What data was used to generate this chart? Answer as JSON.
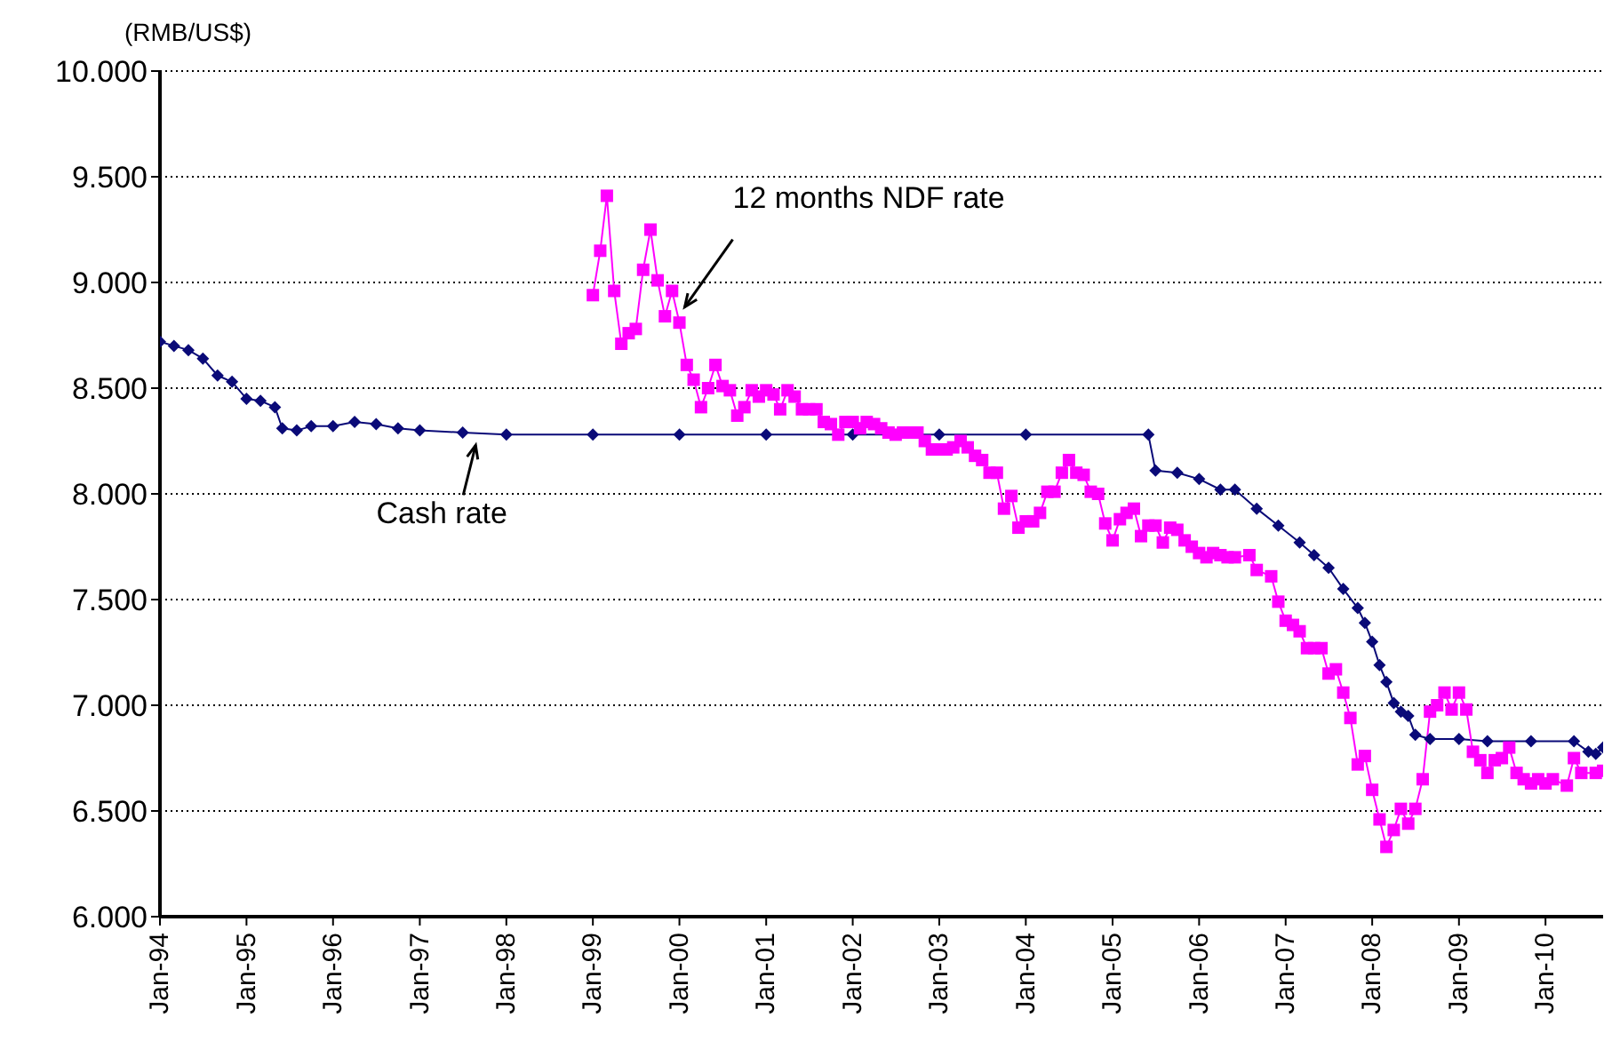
{
  "chart_data": {
    "type": "line",
    "ylabel": "(RMB/US$)",
    "xlim": [
      "1994-01",
      "2010-09"
    ],
    "xticks": [
      {
        "value": "1994-01",
        "label": "Jan-94"
      },
      {
        "value": "1995-01",
        "label": "Jan-95"
      },
      {
        "value": "1996-01",
        "label": "Jan-96"
      },
      {
        "value": "1997-01",
        "label": "Jan-97"
      },
      {
        "value": "1998-01",
        "label": "Jan-98"
      },
      {
        "value": "1999-01",
        "label": "Jan-99"
      },
      {
        "value": "2000-01",
        "label": "Jan-00"
      },
      {
        "value": "2001-01",
        "label": "Jan-01"
      },
      {
        "value": "2002-01",
        "label": "Jan-02"
      },
      {
        "value": "2003-01",
        "label": "Jan-03"
      },
      {
        "value": "2004-01",
        "label": "Jan-04"
      },
      {
        "value": "2005-01",
        "label": "Jan-05"
      },
      {
        "value": "2006-01",
        "label": "Jan-06"
      },
      {
        "value": "2007-01",
        "label": "Jan-07"
      },
      {
        "value": "2008-01",
        "label": "Jan-08"
      },
      {
        "value": "2009-01",
        "label": "Jan-09"
      },
      {
        "value": "2010-01",
        "label": "Jan-10"
      }
    ],
    "ylim": [
      6,
      10
    ],
    "yticks": [
      {
        "value": 6,
        "label": "6.000"
      },
      {
        "value": 6.5,
        "label": "6.500"
      },
      {
        "value": 7,
        "label": "7.000"
      },
      {
        "value": 7.5,
        "label": "7.500"
      },
      {
        "value": 8,
        "label": "8.000"
      },
      {
        "value": 8.5,
        "label": "8.500"
      },
      {
        "value": 9,
        "label": "9.000"
      },
      {
        "value": 9.5,
        "label": "9.500"
      },
      {
        "value": 10,
        "label": "10.000"
      }
    ],
    "grid": "y",
    "legend": false,
    "annotations": [
      {
        "text": "12 months NDF rate",
        "x": "2000-01",
        "y": 8.85
      },
      {
        "text": "Cash rate",
        "x": "1997-09",
        "y": 8.28
      }
    ],
    "series": [
      {
        "color": "#0a0a78",
        "marker": "diamond",
        "line_style": "solid",
        "x": [
          "1994-01",
          "1994-03",
          "1994-05",
          "1994-07",
          "1994-09",
          "1994-11",
          "1995-01",
          "1995-03",
          "1995-05",
          "1995-06",
          "1995-08",
          "1995-10",
          "1996-01",
          "1996-04",
          "1996-07",
          "1996-10",
          "1997-01",
          "1997-07",
          "1998-01",
          "1999-01",
          "2000-01",
          "2001-01",
          "2002-01",
          "2003-01",
          "2004-01",
          "2005-06",
          "2005-07",
          "2005-10",
          "2006-01",
          "2006-04",
          "2006-06",
          "2006-09",
          "2006-12",
          "2007-03",
          "2007-05",
          "2007-07",
          "2007-09",
          "2007-11",
          "2007-12",
          "2008-01",
          "2008-02",
          "2008-03",
          "2008-04",
          "2008-05",
          "2008-06",
          "2008-07",
          "2008-09",
          "2009-01",
          "2009-05",
          "2009-11",
          "2010-05",
          "2010-07",
          "2010-08",
          "2010-09"
        ],
        "values": [
          8.72,
          8.7,
          8.68,
          8.64,
          8.56,
          8.53,
          8.45,
          8.44,
          8.41,
          8.31,
          8.3,
          8.32,
          8.32,
          8.34,
          8.33,
          8.31,
          8.3,
          8.29,
          8.28,
          8.28,
          8.28,
          8.28,
          8.28,
          8.28,
          8.28,
          8.28,
          8.11,
          8.1,
          8.07,
          8.02,
          8.02,
          7.93,
          7.85,
          7.77,
          7.71,
          7.65,
          7.55,
          7.46,
          7.39,
          7.3,
          7.19,
          7.11,
          7.01,
          6.97,
          6.95,
          6.86,
          6.84,
          6.84,
          6.83,
          6.83,
          6.83,
          6.78,
          6.77,
          6.8
        ]
      },
      {
        "color": "#ff00ff",
        "marker": "square",
        "line_style": "solid",
        "x": [
          "1999-01",
          "1999-02",
          "1999-03",
          "1999-04",
          "1999-05",
          "1999-06",
          "1999-07",
          "1999-08",
          "1999-09",
          "1999-10",
          "1999-11",
          "1999-12",
          "2000-01",
          "2000-02",
          "2000-03",
          "2000-04",
          "2000-05",
          "2000-06",
          "2000-07",
          "2000-08",
          "2000-09",
          "2000-10",
          "2000-11",
          "2000-12",
          "2001-01",
          "2001-02",
          "2001-03",
          "2001-04",
          "2001-05",
          "2001-06",
          "2001-07",
          "2001-08",
          "2001-09",
          "2001-10",
          "2001-11",
          "2001-12",
          "2002-01",
          "2002-02",
          "2002-03",
          "2002-04",
          "2002-05",
          "2002-06",
          "2002-07",
          "2002-08",
          "2002-09",
          "2002-10",
          "2002-11",
          "2002-12",
          "2003-01",
          "2003-02",
          "2003-03",
          "2003-04",
          "2003-05",
          "2003-06",
          "2003-07",
          "2003-08",
          "2003-09",
          "2003-10",
          "2003-11",
          "2003-12",
          "2004-01",
          "2004-02",
          "2004-03",
          "2004-04",
          "2004-05",
          "2004-06",
          "2004-07",
          "2004-08",
          "2004-09",
          "2004-10",
          "2004-11",
          "2004-12",
          "2005-01",
          "2005-02",
          "2005-03",
          "2005-04",
          "2005-05",
          "2005-06",
          "2005-07",
          "2005-08",
          "2005-09",
          "2005-10",
          "2005-11",
          "2005-12",
          "2006-01",
          "2006-02",
          "2006-03",
          "2006-04",
          "2006-05",
          "2006-06",
          "2006-08",
          "2006-09",
          "2006-11",
          "2006-12",
          "2007-01",
          "2007-02",
          "2007-03",
          "2007-04",
          "2007-05",
          "2007-06",
          "2007-07",
          "2007-08",
          "2007-09",
          "2007-10",
          "2007-11",
          "2007-12",
          "2008-01",
          "2008-02",
          "2008-03",
          "2008-04",
          "2008-05",
          "2008-06",
          "2008-07",
          "2008-08",
          "2008-09",
          "2008-10",
          "2008-11",
          "2008-12",
          "2009-01",
          "2009-02",
          "2009-03",
          "2009-04",
          "2009-05",
          "2009-06",
          "2009-07",
          "2009-08",
          "2009-09",
          "2009-10",
          "2009-11",
          "2009-12",
          "2010-01",
          "2010-02",
          "2010-04",
          "2010-05",
          "2010-06",
          "2010-08",
          "2010-09"
        ],
        "values": [
          8.94,
          9.15,
          9.41,
          8.96,
          8.71,
          8.76,
          8.78,
          9.06,
          9.25,
          9.01,
          8.84,
          8.96,
          8.81,
          8.61,
          8.54,
          8.41,
          8.5,
          8.61,
          8.51,
          8.49,
          8.37,
          8.41,
          8.49,
          8.46,
          8.49,
          8.47,
          8.4,
          8.49,
          8.46,
          8.4,
          8.4,
          8.4,
          8.34,
          8.33,
          8.28,
          8.34,
          8.34,
          8.31,
          8.34,
          8.33,
          8.31,
          8.29,
          8.28,
          8.29,
          8.29,
          8.29,
          8.25,
          8.21,
          8.21,
          8.21,
          8.22,
          8.25,
          8.22,
          8.18,
          8.16,
          8.1,
          8.1,
          7.93,
          7.99,
          7.84,
          7.87,
          7.87,
          7.91,
          8.01,
          8.01,
          8.1,
          8.16,
          8.1,
          8.09,
          8.01,
          8.0,
          7.86,
          7.78,
          7.88,
          7.91,
          7.93,
          7.8,
          7.85,
          7.85,
          7.77,
          7.84,
          7.83,
          7.78,
          7.75,
          7.72,
          7.7,
          7.72,
          7.71,
          7.7,
          7.7,
          7.71,
          7.64,
          7.61,
          7.49,
          7.4,
          7.38,
          7.35,
          7.27,
          7.27,
          7.27,
          7.15,
          7.17,
          7.06,
          6.94,
          6.72,
          6.76,
          6.6,
          6.46,
          6.33,
          6.41,
          6.51,
          6.44,
          6.51,
          6.65,
          6.97,
          7.0,
          7.06,
          6.98,
          7.06,
          6.98,
          6.78,
          6.74,
          6.68,
          6.74,
          6.75,
          6.8,
          6.68,
          6.65,
          6.63,
          6.65,
          6.63,
          6.65,
          6.62,
          6.75,
          6.68,
          6.68,
          6.69
        ]
      }
    ]
  }
}
